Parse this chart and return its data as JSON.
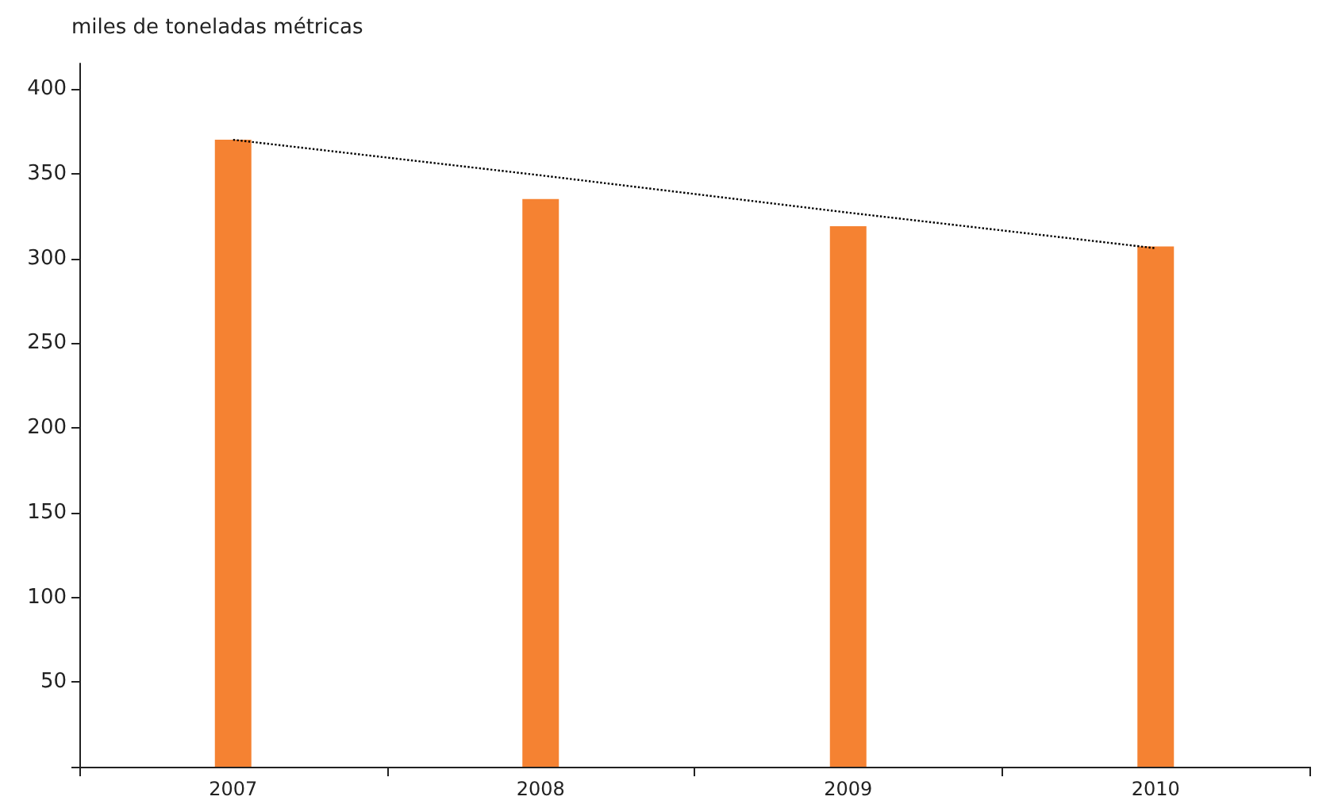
{
  "chart_data": {
    "type": "bar",
    "ylabel": "miles de toneladas métricas",
    "categories": [
      "2007",
      "2008",
      "2009",
      "2010"
    ],
    "series": [
      {
        "color": "#f58232",
        "values": [
          370,
          335,
          319,
          307
        ]
      },
      {
        "type": "line",
        "color": "#000000",
        "values": [
          370,
          349,
          327,
          306
        ],
        "line_style": "dotted",
        "marker": "none"
      }
    ],
    "ylim": [
      0,
      415
    ],
    "yticks": [
      {
        "value": 0,
        "label": null
      },
      50,
      100,
      150,
      200,
      250,
      300,
      350,
      400
    ],
    "grid": false
  }
}
